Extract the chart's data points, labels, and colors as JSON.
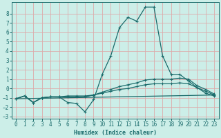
{
  "xlabel": "Humidex (Indice chaleur)",
  "bg_color": "#cceee8",
  "grid_color": "#aadddd",
  "line_color": "#1a6b6b",
  "xlim": [
    -0.5,
    23.5
  ],
  "ylim": [
    -3.2,
    9.2
  ],
  "xticks": [
    0,
    1,
    2,
    3,
    4,
    5,
    6,
    7,
    8,
    9,
    10,
    11,
    12,
    13,
    14,
    15,
    16,
    17,
    18,
    19,
    20,
    21,
    22,
    23
  ],
  "yticks": [
    -3,
    -2,
    -1,
    0,
    1,
    2,
    3,
    4,
    5,
    6,
    7,
    8
  ],
  "series1": [
    [
      0,
      -1.1
    ],
    [
      1,
      -0.8
    ],
    [
      2,
      -1.5
    ],
    [
      3,
      -1.0
    ],
    [
      4,
      -0.9
    ],
    [
      5,
      -0.9
    ],
    [
      6,
      -1.5
    ],
    [
      7,
      -1.6
    ],
    [
      8,
      -2.5
    ],
    [
      9,
      -1.2
    ],
    [
      10,
      1.5
    ],
    [
      11,
      3.5
    ],
    [
      12,
      6.5
    ],
    [
      13,
      7.6
    ],
    [
      14,
      7.2
    ],
    [
      15,
      8.7
    ],
    [
      16,
      8.7
    ],
    [
      17,
      3.5
    ],
    [
      18,
      1.5
    ],
    [
      19,
      1.5
    ],
    [
      20,
      0.8
    ],
    [
      21,
      0.1
    ],
    [
      22,
      -0.5
    ],
    [
      23,
      -0.8
    ]
  ],
  "series2": [
    [
      0,
      -1.1
    ],
    [
      1,
      -0.8
    ],
    [
      2,
      -1.5
    ],
    [
      3,
      -1.0
    ],
    [
      4,
      -0.9
    ],
    [
      5,
      -0.9
    ],
    [
      6,
      -0.9
    ],
    [
      7,
      -0.9
    ],
    [
      8,
      -0.9
    ],
    [
      9,
      -0.7
    ],
    [
      10,
      -0.4
    ],
    [
      11,
      -0.1
    ],
    [
      12,
      0.2
    ],
    [
      13,
      0.4
    ],
    [
      14,
      0.6
    ],
    [
      15,
      0.9
    ],
    [
      16,
      1.0
    ],
    [
      17,
      1.0
    ],
    [
      18,
      1.0
    ],
    [
      19,
      1.1
    ],
    [
      20,
      1.0
    ],
    [
      21,
      0.3
    ],
    [
      22,
      -0.1
    ],
    [
      23,
      -0.6
    ]
  ],
  "series3": [
    [
      0,
      -1.1
    ],
    [
      1,
      -0.8
    ],
    [
      2,
      -1.5
    ],
    [
      3,
      -1.0
    ],
    [
      4,
      -0.9
    ],
    [
      5,
      -0.9
    ],
    [
      6,
      -0.8
    ],
    [
      7,
      -0.8
    ],
    [
      8,
      -0.8
    ],
    [
      9,
      -0.7
    ],
    [
      10,
      -0.5
    ],
    [
      11,
      -0.3
    ],
    [
      12,
      -0.1
    ],
    [
      13,
      0.0
    ],
    [
      14,
      0.2
    ],
    [
      15,
      0.4
    ],
    [
      16,
      0.5
    ],
    [
      17,
      0.5
    ],
    [
      18,
      0.5
    ],
    [
      19,
      0.6
    ],
    [
      20,
      0.5
    ],
    [
      21,
      0.1
    ],
    [
      22,
      -0.3
    ],
    [
      23,
      -0.7
    ]
  ],
  "series4_x": [
    0,
    23
  ],
  "series4_y": [
    -1.1,
    -0.7
  ]
}
